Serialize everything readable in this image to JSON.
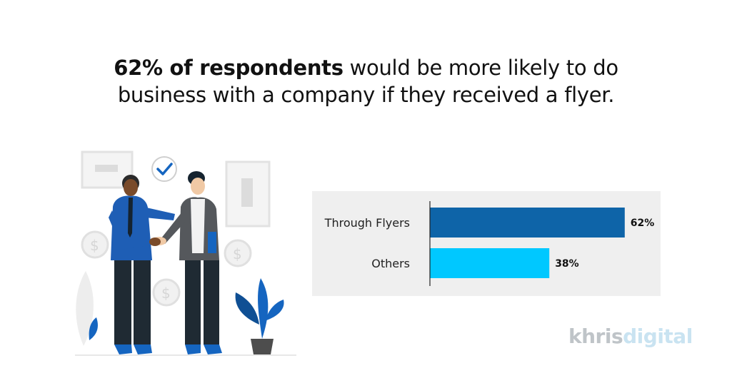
{
  "headline": {
    "bold_part": "62% of respondents",
    "line1_rest": " would be more likely to do",
    "line2": "business with a company if they received a flyer."
  },
  "chart_data": {
    "type": "bar",
    "orientation": "horizontal",
    "categories": [
      "Through Flyers",
      "Others"
    ],
    "values": [
      62,
      38
    ],
    "value_labels": [
      "62%",
      "38%"
    ],
    "colors": [
      "#0e64a8",
      "#00c8ff"
    ],
    "xlim": [
      0,
      100
    ],
    "grid": false
  },
  "logo": {
    "part1": "khris",
    "part2": "digital"
  }
}
